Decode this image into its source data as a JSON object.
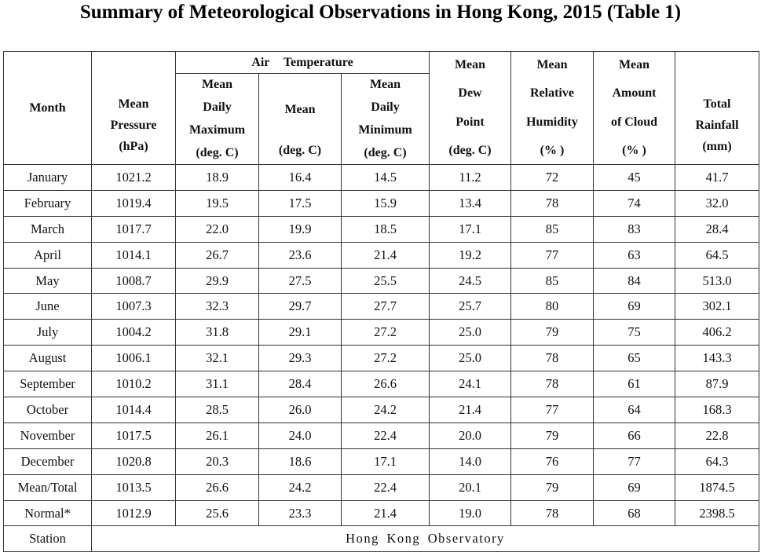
{
  "title": "Summary of Meteorological Observations in Hong Kong, 2015 (Table 1)",
  "headers": {
    "month": "Month",
    "pressure": [
      "Mean",
      "Pressure",
      "(hPa)"
    ],
    "air_temperature": "Air Temperature",
    "max": [
      "Mean",
      "Daily",
      "Maximum",
      "(deg. C)"
    ],
    "mean_temp": [
      "Mean",
      "(deg. C)"
    ],
    "min": [
      "Mean",
      "Daily",
      "Minimum",
      "(deg. C)"
    ],
    "dew": [
      "Mean",
      "Dew",
      "Point",
      "(deg. C)"
    ],
    "humidity": [
      "Mean",
      "Relative",
      "Humidity",
      "(% )"
    ],
    "cloud": [
      "Mean",
      "Amount",
      "of Cloud",
      "(% )"
    ],
    "rainfall": [
      "Total",
      "Rainfall",
      "(mm)"
    ]
  },
  "rows": [
    [
      "January",
      "1021.2",
      "18.9",
      "16.4",
      "14.5",
      "11.2",
      "72",
      "45",
      "41.7"
    ],
    [
      "February",
      "1019.4",
      "19.5",
      "17.5",
      "15.9",
      "13.4",
      "78",
      "74",
      "32.0"
    ],
    [
      "March",
      "1017.7",
      "22.0",
      "19.9",
      "18.5",
      "17.1",
      "85",
      "83",
      "28.4"
    ],
    [
      "April",
      "1014.1",
      "26.7",
      "23.6",
      "21.4",
      "19.2",
      "77",
      "63",
      "64.5"
    ],
    [
      "May",
      "1008.7",
      "29.9",
      "27.5",
      "25.5",
      "24.5",
      "85",
      "84",
      "513.0"
    ],
    [
      "June",
      "1007.3",
      "32.3",
      "29.7",
      "27.7",
      "25.7",
      "80",
      "69",
      "302.1"
    ],
    [
      "July",
      "1004.2",
      "31.8",
      "29.1",
      "27.2",
      "25.0",
      "79",
      "75",
      "406.2"
    ],
    [
      "August",
      "1006.1",
      "32.1",
      "29.3",
      "27.2",
      "25.0",
      "78",
      "65",
      "143.3"
    ],
    [
      "September",
      "1010.2",
      "31.1",
      "28.4",
      "26.6",
      "24.1",
      "78",
      "61",
      "87.9"
    ],
    [
      "October",
      "1014.4",
      "28.5",
      "26.0",
      "24.2",
      "21.4",
      "77",
      "64",
      "168.3"
    ],
    [
      "November",
      "1017.5",
      "26.1",
      "24.0",
      "22.4",
      "20.0",
      "79",
      "66",
      "22.8"
    ],
    [
      "December",
      "1020.8",
      "20.3",
      "18.6",
      "17.1",
      "14.0",
      "76",
      "77",
      "64.3"
    ],
    [
      "Mean/Total",
      "1013.5",
      "26.6",
      "24.2",
      "22.4",
      "20.1",
      "79",
      "69",
      "1874.5"
    ],
    [
      "Normal*",
      "1012.9",
      "25.6",
      "23.3",
      "21.4",
      "19.0",
      "78",
      "68",
      "2398.5"
    ]
  ],
  "station": {
    "label": "Station",
    "value": "Hong Kong Observatory"
  }
}
